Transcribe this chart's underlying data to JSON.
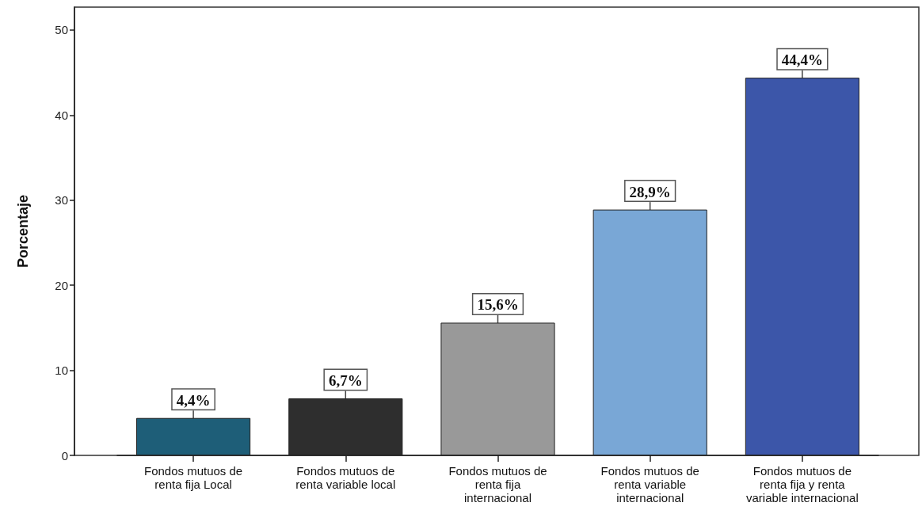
{
  "chart_data": {
    "type": "bar",
    "ylabel": "Porcentaje",
    "categories": [
      "Fondos mutuos de\nrenta fija Local",
      "Fondos mutuos de\nrenta variable local",
      "Fondos mutuos de\nrenta fija\ninternacional",
      "Fondos mutuos de\nrenta variable\ninternacional",
      "Fondos mutuos de\nrenta fija y renta\nvariable internacional"
    ],
    "values": [
      4.4,
      6.7,
      15.6,
      28.9,
      44.4
    ],
    "colors": [
      "#1e5e78",
      "#2e2e2e",
      "#999999",
      "#79a7d6",
      "#3c56a9"
    ],
    "value_labels": [
      "4,4%",
      "6,7%",
      "15,6%",
      "28,9%",
      "44,4%"
    ],
    "ylim": [
      0,
      52.7
    ],
    "yticks": [
      0,
      10,
      20,
      30,
      40,
      50
    ]
  }
}
